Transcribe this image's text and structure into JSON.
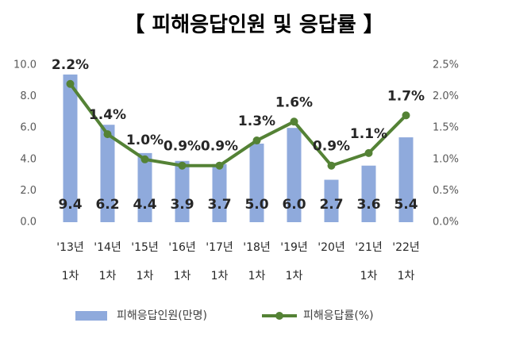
{
  "chart_data": {
    "type": "bar-line",
    "title": "【 피해응답인원 및 응답률 】",
    "categories": [
      [
        "'13년",
        "1차"
      ],
      [
        "'14년",
        "1차"
      ],
      [
        "'15년",
        "1차"
      ],
      [
        "'16년",
        "1차"
      ],
      [
        "'17년",
        "1차"
      ],
      [
        "'18년",
        "1차"
      ],
      [
        "'19년",
        "1차"
      ],
      [
        "'20년"
      ],
      [
        "'21년",
        "1차"
      ],
      [
        "'22년",
        "1차"
      ]
    ],
    "series": [
      {
        "name": "피해응답인원(만명)",
        "type": "bar",
        "color": "#8faadc",
        "values": [
          9.4,
          6.2,
          4.4,
          3.9,
          3.7,
          5.0,
          6.0,
          2.7,
          3.6,
          5.4
        ],
        "value_labels": [
          "9.4",
          "6.2",
          "4.4",
          "3.9",
          "3.7",
          "5.0",
          "6.0",
          "2.7",
          "3.6",
          "5.4"
        ]
      },
      {
        "name": "피해응답률(%)",
        "type": "line",
        "axis": "y2",
        "color": "#548235",
        "values": [
          2.2,
          1.4,
          1.0,
          0.9,
          0.9,
          1.3,
          1.6,
          0.9,
          1.1,
          1.7
        ],
        "value_labels": [
          "2.2%",
          "1.4%",
          "1.0%",
          "0.9%",
          "0.9%",
          "1.3%",
          "1.6%",
          "0.9%",
          "1.1%",
          "1.7%"
        ]
      }
    ],
    "ylim": [
      0,
      10
    ],
    "yticks": [
      {
        "value": 0,
        "label": "0.0"
      },
      {
        "value": 2,
        "label": "2.0"
      },
      {
        "value": 4,
        "label": "4.0"
      },
      {
        "value": 6,
        "label": "6.0"
      },
      {
        "value": 8,
        "label": "8.0"
      },
      {
        "value": 10,
        "label": "10.0"
      }
    ],
    "y2lim": [
      0,
      2.5
    ],
    "y2ticks": [
      {
        "value": 0,
        "label": "0.0%"
      },
      {
        "value": 0.5,
        "label": "0.5%"
      },
      {
        "value": 1,
        "label": "1.0%"
      },
      {
        "value": 1.5,
        "label": "1.5%"
      },
      {
        "value": 2,
        "label": "2.0%"
      },
      {
        "value": 2.5,
        "label": "2.5%"
      }
    ],
    "legend": "bottom"
  }
}
